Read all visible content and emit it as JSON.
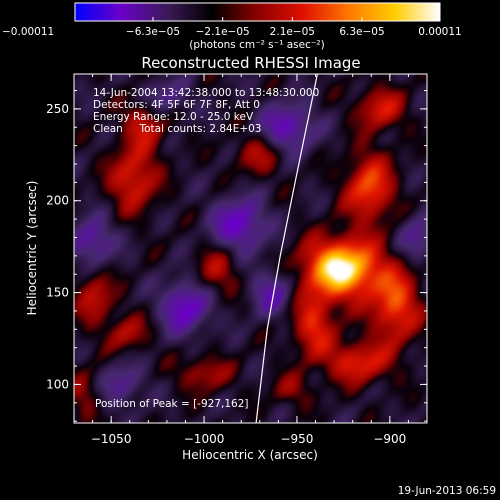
{
  "chart_data": {
    "type": "heatmap",
    "title": "Reconstructed RHESSI Image",
    "xlabel": "Heliocentric X (arcsec)",
    "ylabel": "Heliocentric Y (arcsec)",
    "xlim": [
      -1070,
      -880
    ],
    "ylim": [
      79,
      269
    ],
    "x_ticks": [
      -1050,
      -1000,
      -950,
      -900
    ],
    "x_tick_labels": [
      "−1050",
      "−1000",
      "−950",
      "−900"
    ],
    "y_ticks": [
      100,
      150,
      200,
      250
    ],
    "y_tick_labels": [
      "100",
      "150",
      "200",
      "250"
    ],
    "colorbar": {
      "range": [
        -0.00011,
        0.00011
      ],
      "tick_values": [
        -0.00011,
        -6.3e-05,
        -2.1e-05,
        2.1e-05,
        6.3e-05,
        0.00011
      ],
      "tick_labels": [
        "−0.00011",
        "−6.3e−05",
        "−2.1e−05",
        "2.1e−05",
        "6.3e−05",
        "0.00011"
      ],
      "unit_label": "(photons cm⁻² s⁻¹ asec⁻²)",
      "colors": [
        "#0000ff",
        "#6a00c8",
        "#3c1a5a",
        "#000000",
        "#8b0000",
        "#e01000",
        "#ff7800",
        "#ffcc00",
        "#ffffff"
      ]
    },
    "annotations": [
      "14-Jun-2004 13:42:38.000 to 13:48:30.000",
      "Detectors: 4F 5F 6F 7F 8F, Att 0",
      "Energy Range: 12.0 - 25.0 keV",
      "Clean     Total counts: 2.84E+03"
    ],
    "peak_label": "Position of Peak = [-927,162]",
    "peak": {
      "x": -927,
      "y": 162
    },
    "bright_regions": [
      {
        "x": -926,
        "y": 163,
        "sx": 14,
        "sy": 11,
        "amp": 1.0
      },
      {
        "x": -911,
        "y": 207,
        "sx": 9,
        "sy": 13,
        "amp": 0.55
      },
      {
        "x": -897,
        "y": 143,
        "sx": 9,
        "sy": 14,
        "amp": 0.55
      },
      {
        "x": -905,
        "y": 250,
        "sx": 9,
        "sy": 8,
        "amp": 0.4
      },
      {
        "x": -941,
        "y": 132,
        "sx": 8,
        "sy": 12,
        "amp": 0.45
      },
      {
        "x": -917,
        "y": 112,
        "sx": 12,
        "sy": 8,
        "amp": 0.45
      },
      {
        "x": -1038,
        "y": 212,
        "sx": 9,
        "sy": 12,
        "amp": 0.45
      },
      {
        "x": -1032,
        "y": 242,
        "sx": 8,
        "sy": 10,
        "amp": 0.35
      },
      {
        "x": -1059,
        "y": 148,
        "sx": 7,
        "sy": 10,
        "amp": 0.35
      },
      {
        "x": -1042,
        "y": 128,
        "sx": 8,
        "sy": 7,
        "amp": 0.3
      },
      {
        "x": -993,
        "y": 162,
        "sx": 8,
        "sy": 9,
        "amp": 0.3
      },
      {
        "x": -971,
        "y": 225,
        "sx": 9,
        "sy": 8,
        "amp": 0.28
      },
      {
        "x": -1000,
        "y": 106,
        "sx": 10,
        "sy": 7,
        "amp": 0.28
      },
      {
        "x": -953,
        "y": 97,
        "sx": 8,
        "sy": 6,
        "amp": 0.22
      },
      {
        "x": -1064,
        "y": 95,
        "sx": 6,
        "sy": 10,
        "amp": 0.22
      }
    ],
    "dark_regions": [
      {
        "x": -981,
        "y": 187,
        "sx": 10,
        "sy": 10,
        "amp": 0.5
      },
      {
        "x": -1010,
        "y": 142,
        "sx": 9,
        "sy": 10,
        "amp": 0.5
      },
      {
        "x": -955,
        "y": 240,
        "sx": 10,
        "sy": 9,
        "amp": 0.45
      },
      {
        "x": -1060,
        "y": 178,
        "sx": 8,
        "sy": 9,
        "amp": 0.4
      },
      {
        "x": -963,
        "y": 150,
        "sx": 8,
        "sy": 9,
        "amp": 0.35
      },
      {
        "x": -1021,
        "y": 256,
        "sx": 9,
        "sy": 7,
        "amp": 0.3
      },
      {
        "x": -1044,
        "y": 100,
        "sx": 8,
        "sy": 8,
        "amp": 0.3
      },
      {
        "x": -885,
        "y": 180,
        "sx": 7,
        "sy": 9,
        "amp": 0.3
      }
    ],
    "limb_curve": [
      [
        -972,
        79
      ],
      [
        -966,
        130
      ],
      [
        -959,
        170
      ],
      [
        -950,
        215
      ],
      [
        -939,
        269
      ]
    ],
    "grid": false
  },
  "footer_date": "19-Jun-2013 06:59"
}
